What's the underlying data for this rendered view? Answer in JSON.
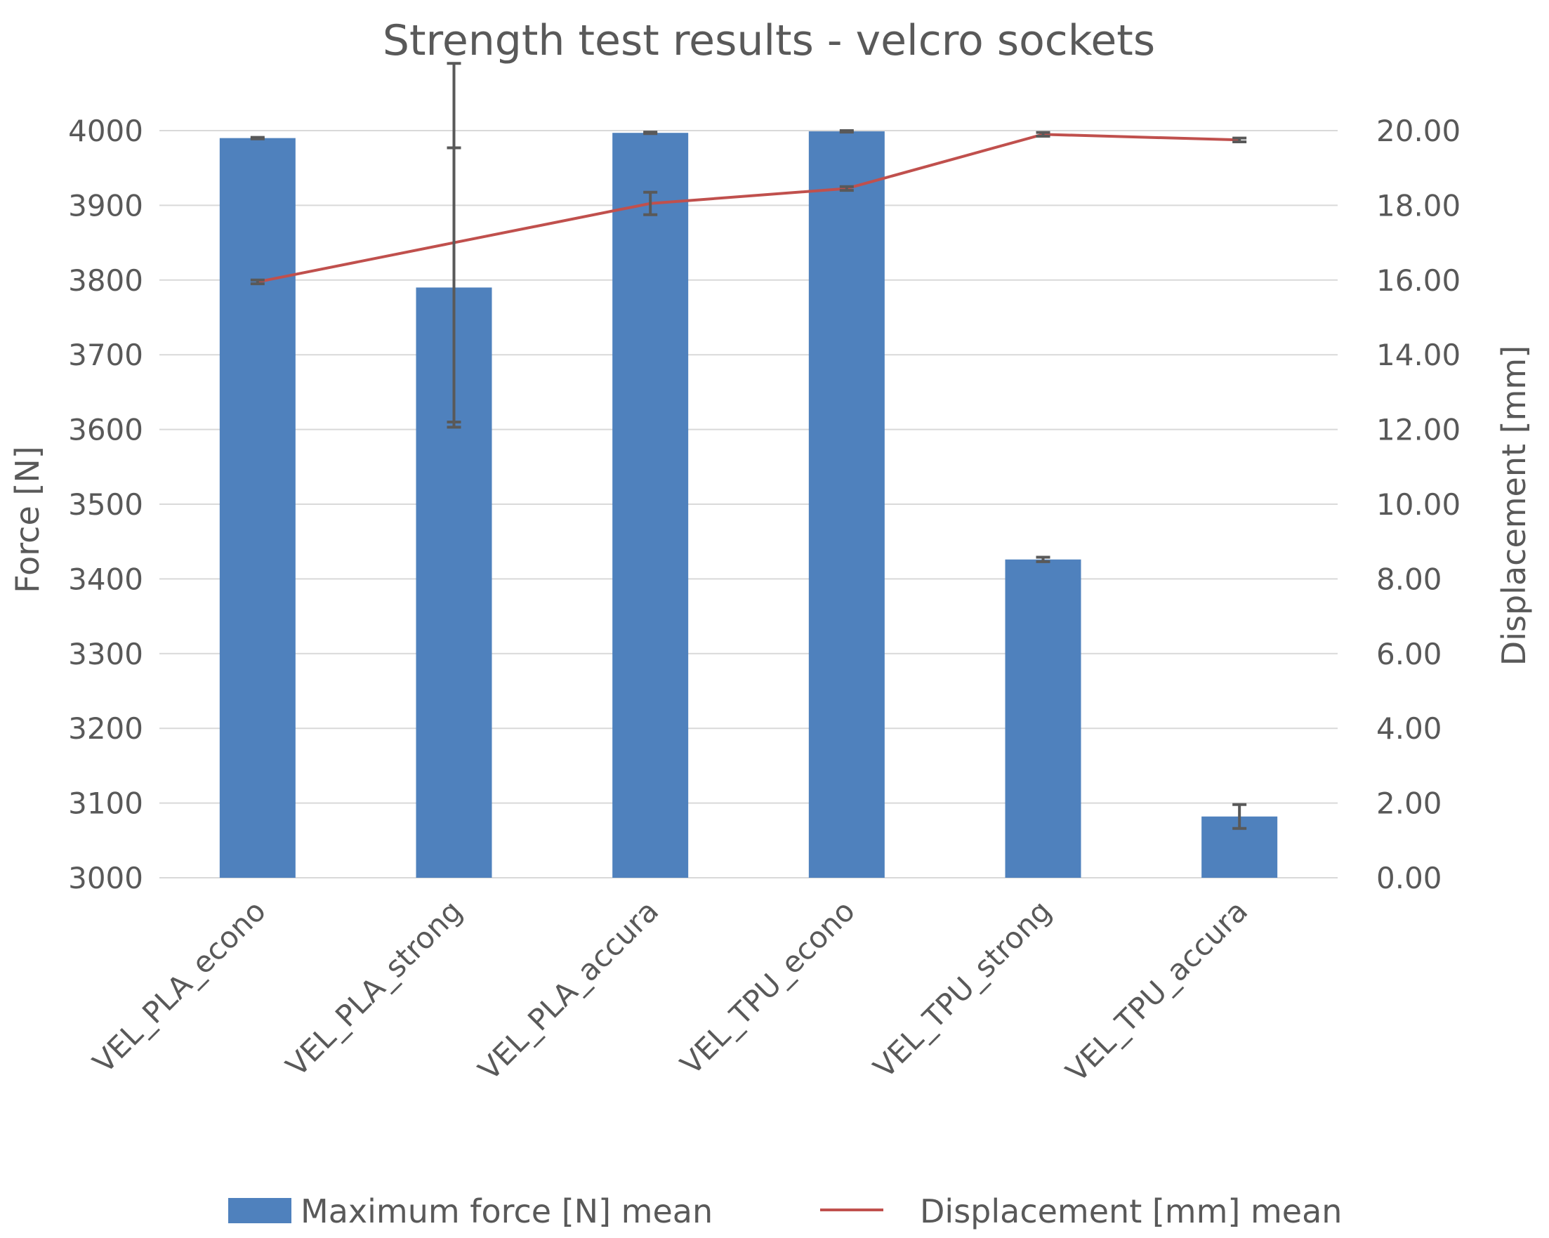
{
  "chart_data": {
    "type": "bar",
    "title": "Strength test results - velcro sockets",
    "categories": [
      "VEL_PLA_econo",
      "VEL_PLA_strong",
      "VEL_PLA_accura",
      "VEL_TPU_econo",
      "VEL_TPU_strong",
      "VEL_TPU_accura"
    ],
    "series": [
      {
        "name": "Maximum force [N] mean",
        "kind": "bar",
        "axis": "left",
        "color": "#4F81BD",
        "values": [
          3990,
          3790,
          3997,
          3999,
          3426,
          3082
        ],
        "error": [
          1,
          187,
          1,
          1,
          3,
          16
        ]
      },
      {
        "name": "Displacement [mm] mean",
        "kind": "line",
        "axis": "right",
        "color": "#C0504D",
        "values": [
          15.95,
          17.0,
          18.05,
          18.45,
          19.9,
          19.75
        ],
        "error": [
          0.05,
          4.8,
          0.3,
          0.05,
          0.05,
          0.05
        ]
      }
    ],
    "ylabel": "Force [N]",
    "ylim": [
      3000,
      4000
    ],
    "yticks": [
      "3000",
      "3100",
      "3200",
      "3300",
      "3400",
      "3500",
      "3600",
      "3700",
      "3800",
      "3900",
      "4000"
    ],
    "y2label": "Displacement [mm]",
    "y2lim": [
      0,
      20
    ],
    "y2ticks": [
      "0.00",
      "2.00",
      "4.00",
      "6.00",
      "8.00",
      "10.00",
      "12.00",
      "14.00",
      "16.00",
      "18.00",
      "20.00"
    ],
    "grid": true,
    "legend_position": "bottom",
    "gridline_color": "#D9D9D9",
    "error_bar_color": "#595959",
    "text_color": "#595959"
  }
}
